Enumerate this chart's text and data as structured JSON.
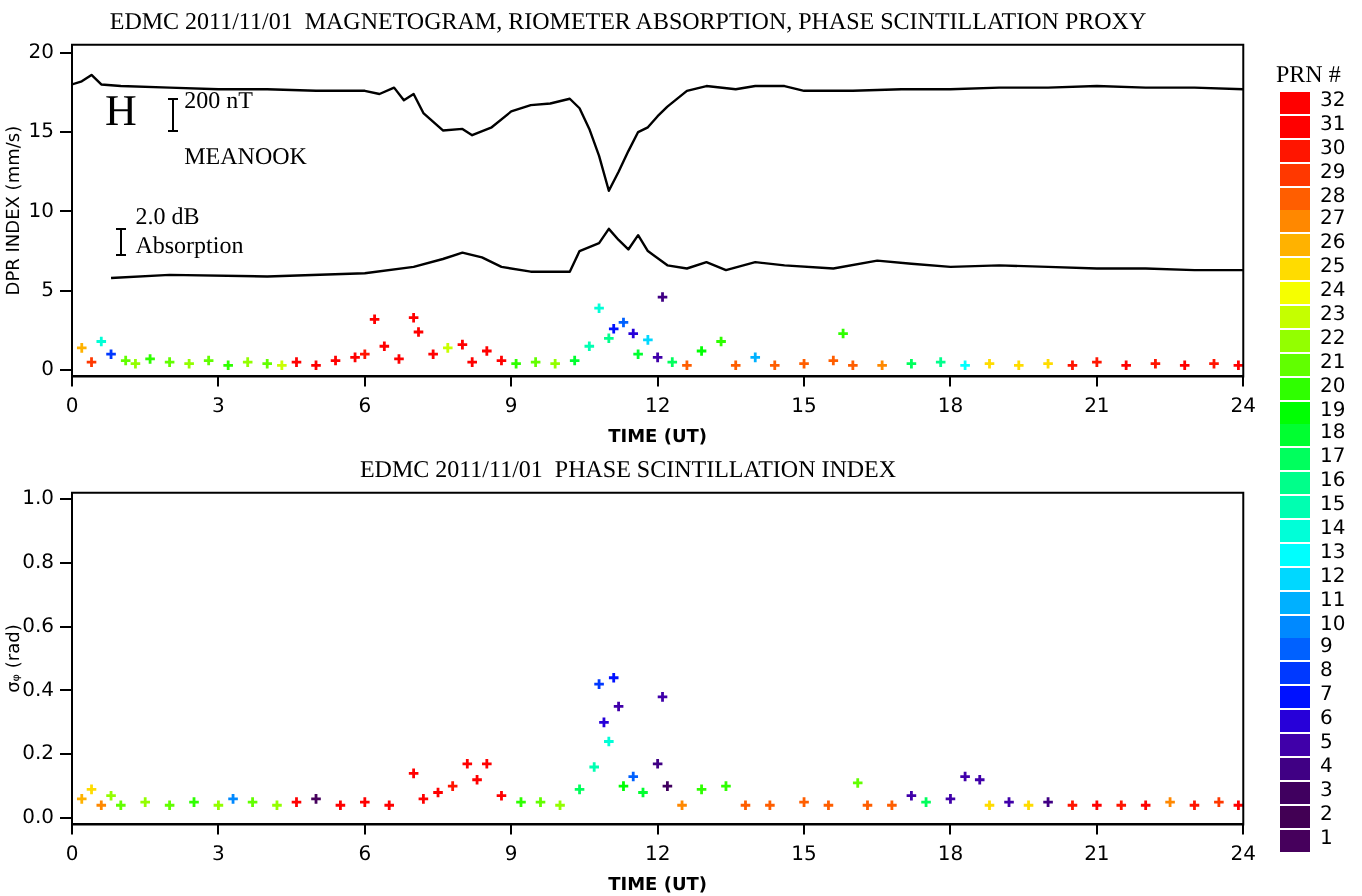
{
  "chart_data": [
    {
      "type": "scatter",
      "title": "EDMC 2011/11/01  MAGNETOGRAM, RIOMETER ABSORPTION, PHASE SCINTILLATION PROXY",
      "xlabel": "TIME (UT)",
      "ylabel": "DPR INDEX (mm/s)",
      "xlim": [
        0,
        24
      ],
      "xticks": [
        0,
        3,
        6,
        9,
        12,
        15,
        18,
        21,
        24
      ],
      "ylim": [
        -0.4,
        20.5
      ],
      "yticks": [
        0,
        5,
        10,
        15,
        20
      ],
      "grid": false,
      "legend": false,
      "clabel": "PRN #",
      "clim": [
        0.5,
        32.5
      ],
      "cticks": [
        1,
        2,
        3,
        4,
        5,
        6,
        7,
        8,
        9,
        10,
        11,
        12,
        13,
        14,
        15,
        16,
        17,
        18,
        19,
        20,
        21,
        22,
        23,
        24,
        25,
        26,
        27,
        28,
        29,
        30,
        31,
        32
      ],
      "annotations": [
        "H",
        "200 nT",
        "MEANOOK",
        "2.0 dB",
        "Absorption"
      ],
      "series": [
        {
          "type": "line",
          "color": "#000000",
          "marker": "none",
          "x": [
            0,
            0.2,
            0.4,
            0.6,
            1,
            2,
            3,
            4,
            5,
            6,
            6.3,
            6.6,
            6.8,
            7.0,
            7.2,
            7.6,
            8.0,
            8.2,
            8.6,
            9.0,
            9.4,
            9.8,
            10.2,
            10.4,
            10.6,
            10.8,
            11.0,
            11.2,
            11.4,
            11.6,
            11.8,
            12.0,
            12.2,
            12.6,
            13.0,
            13.6,
            14.0,
            14.6,
            15.0,
            16,
            17,
            18,
            19,
            20,
            21,
            22,
            23,
            24
          ],
          "values": [
            18.0,
            18.2,
            18.6,
            18.0,
            17.9,
            17.8,
            17.7,
            17.7,
            17.6,
            17.6,
            17.4,
            17.8,
            17.0,
            17.4,
            16.2,
            15.1,
            15.2,
            14.8,
            15.3,
            16.3,
            16.7,
            16.8,
            17.1,
            16.5,
            15.2,
            13.5,
            11.3,
            12.5,
            13.8,
            15.0,
            15.3,
            16.0,
            16.6,
            17.6,
            17.9,
            17.7,
            17.9,
            17.9,
            17.6,
            17.6,
            17.7,
            17.7,
            17.8,
            17.8,
            17.9,
            17.8,
            17.8,
            17.7
          ]
        },
        {
          "type": "line",
          "color": "#000000",
          "marker": "none",
          "x": [
            0.8,
            2,
            4,
            6,
            7,
            7.6,
            8.0,
            8.4,
            8.8,
            9.4,
            10.2,
            10.4,
            10.8,
            11.0,
            11.2,
            11.4,
            11.6,
            11.8,
            12.2,
            12.6,
            13.0,
            13.4,
            14.0,
            14.6,
            15.6,
            16.5,
            17.2,
            18,
            19,
            20,
            21,
            22,
            23,
            24
          ],
          "values": [
            5.8,
            6.0,
            5.9,
            6.1,
            6.5,
            7.0,
            7.4,
            7.1,
            6.5,
            6.2,
            6.2,
            7.5,
            8.0,
            8.9,
            8.2,
            7.6,
            8.5,
            7.5,
            6.6,
            6.4,
            6.8,
            6.3,
            6.8,
            6.6,
            6.4,
            6.9,
            6.7,
            6.5,
            6.6,
            6.5,
            6.4,
            6.4,
            6.3,
            6.3
          ]
        },
        {
          "type": "scatter",
          "marker": "cross",
          "x": [
            0.2,
            0.4,
            0.6,
            0.8,
            1.1,
            1.3,
            1.6,
            2.0,
            2.4,
            2.8,
            3.2,
            3.6,
            4.0,
            4.3,
            4.6,
            5.0,
            5.4,
            5.8,
            6.0,
            6.2,
            6.4,
            6.7,
            7.0,
            7.1,
            7.4,
            7.7,
            8.0,
            8.2,
            8.5,
            8.8,
            9.1,
            9.5,
            9.9,
            10.3,
            10.6,
            10.8,
            11.0,
            11.1,
            11.3,
            11.5,
            11.6,
            11.8,
            12.0,
            12.1,
            12.3,
            12.6,
            12.9,
            13.3,
            13.6,
            14.0,
            14.4,
            15.0,
            15.6,
            15.8,
            16.0,
            16.6,
            17.2,
            17.8,
            18.3,
            18.8,
            19.4,
            20.0,
            20.5,
            21.0,
            21.6,
            22.2,
            22.8,
            23.4,
            23.9
          ],
          "values": [
            1.4,
            0.5,
            1.8,
            1.0,
            0.6,
            0.4,
            0.7,
            0.5,
            0.4,
            0.6,
            0.3,
            0.5,
            0.4,
            0.3,
            0.5,
            0.3,
            0.6,
            0.8,
            1.0,
            3.2,
            1.5,
            0.7,
            3.3,
            2.4,
            1.0,
            1.4,
            1.6,
            0.5,
            1.2,
            0.6,
            0.4,
            0.5,
            0.4,
            0.6,
            1.5,
            3.9,
            2.0,
            2.6,
            3.0,
            2.3,
            1.0,
            1.9,
            0.8,
            4.6,
            0.5,
            0.3,
            1.2,
            1.8,
            0.3,
            0.8,
            0.3,
            0.4,
            0.6,
            2.3,
            0.3,
            0.3,
            0.4,
            0.5,
            0.3,
            0.4,
            0.3,
            0.4,
            0.3,
            0.5,
            0.3,
            0.4,
            0.3,
            0.4,
            0.3
          ],
          "colors": [
            "#ffb200",
            "#ff3800",
            "#00ffd7",
            "#0038ff",
            "#62ff00",
            "#93ff00",
            "#2eff00",
            "#62ff00",
            "#93ff00",
            "#62ff00",
            "#2eff00",
            "#93ff00",
            "#62ff00",
            "#c9ff00",
            "#ff0000",
            "#ff0000",
            "#ff0000",
            "#ff0000",
            "#ff1500",
            "#ff0000",
            "#ff0000",
            "#ff0000",
            "#ff0000",
            "#ff0000",
            "#ff0000",
            "#c9ff00",
            "#ff0000",
            "#ff0000",
            "#ff0000",
            "#ff0000",
            "#2eff00",
            "#62ff00",
            "#93ff00",
            "#00ff30",
            "#00ffb1",
            "#00ffd7",
            "#00ff8c",
            "#0011ff",
            "#0061ff",
            "#2600d9",
            "#00ff30",
            "#00d8ff",
            "#4000aa",
            "#400084",
            "#00ff5c",
            "#ff5e00",
            "#00ff03",
            "#2eff00",
            "#ff5e00",
            "#00b1ff",
            "#ff5e00",
            "#ff5e00",
            "#ff5e00",
            "#2eff00",
            "#ff5e00",
            "#ff8800",
            "#00ff5c",
            "#00ff8c",
            "#00fffe",
            "#ffdc00",
            "#ffdc00",
            "#ffdc00",
            "#ff1500",
            "#ff1500",
            "#ff0000",
            "#ff1500",
            "#ff0000",
            "#ff1500",
            "#ff0000"
          ]
        }
      ]
    },
    {
      "type": "scatter",
      "title": "EDMC 2011/11/01  PHASE SCINTILLATION INDEX",
      "xlabel": "TIME (UT)",
      "ylabel": "σᵩ (rad)",
      "xlim": [
        0,
        24
      ],
      "xticks": [
        0,
        3,
        6,
        9,
        12,
        15,
        18,
        21,
        24
      ],
      "ylim": [
        -0.02,
        1.02
      ],
      "yticks": [
        {
          "value": 0,
          "label": "0.0"
        },
        {
          "value": 0.2,
          "label": "0.2"
        },
        {
          "value": 0.4,
          "label": "0.4"
        },
        {
          "value": 0.6,
          "label": "0.6"
        },
        {
          "value": 0.8,
          "label": "0.8"
        },
        {
          "value": 1,
          "label": "1.0"
        }
      ],
      "grid": false,
      "legend": false,
      "series": [
        {
          "type": "scatter",
          "marker": "cross",
          "x": [
            0.2,
            0.4,
            0.6,
            0.8,
            1.0,
            1.5,
            2.0,
            2.5,
            3.0,
            3.3,
            3.7,
            4.2,
            4.6,
            5.0,
            5.5,
            6.0,
            6.5,
            7.0,
            7.2,
            7.5,
            7.8,
            8.1,
            8.3,
            8.5,
            8.8,
            9.2,
            9.6,
            10.0,
            10.4,
            10.7,
            10.8,
            10.9,
            11.0,
            11.1,
            11.2,
            11.3,
            11.5,
            11.7,
            12.0,
            12.1,
            12.2,
            12.5,
            12.9,
            13.4,
            13.8,
            14.3,
            15.0,
            15.5,
            16.1,
            16.3,
            16.8,
            17.2,
            17.5,
            18.0,
            18.3,
            18.6,
            18.8,
            19.2,
            19.6,
            20.0,
            20.5,
            21.0,
            21.5,
            22.0,
            22.5,
            23.0,
            23.5,
            23.9
          ],
          "values": [
            0.06,
            0.09,
            0.04,
            0.07,
            0.04,
            0.05,
            0.04,
            0.05,
            0.04,
            0.06,
            0.05,
            0.04,
            0.05,
            0.06,
            0.04,
            0.05,
            0.04,
            0.14,
            0.06,
            0.08,
            0.1,
            0.17,
            0.12,
            0.17,
            0.07,
            0.05,
            0.05,
            0.04,
            0.09,
            0.16,
            0.42,
            0.3,
            0.24,
            0.44,
            0.35,
            0.1,
            0.13,
            0.08,
            0.17,
            0.38,
            0.1,
            0.04,
            0.09,
            0.1,
            0.04,
            0.04,
            0.05,
            0.04,
            0.11,
            0.04,
            0.04,
            0.07,
            0.05,
            0.06,
            0.13,
            0.12,
            0.04,
            0.05,
            0.04,
            0.05,
            0.04,
            0.04,
            0.04,
            0.04,
            0.05,
            0.04,
            0.05,
            0.04
          ],
          "colors": [
            "#ffb200",
            "#ffdc00",
            "#ff8800",
            "#93ff00",
            "#62ff00",
            "#93ff00",
            "#62ff00",
            "#2eff00",
            "#93ff00",
            "#0089ff",
            "#62ff00",
            "#93ff00",
            "#ff0000",
            "#46005c",
            "#ff0000",
            "#ff0000",
            "#ff0000",
            "#ff0000",
            "#ff0000",
            "#ff0000",
            "#ff1500",
            "#ff0000",
            "#ff0000",
            "#ff0000",
            "#ff0000",
            "#2eff00",
            "#62ff00",
            "#93ff00",
            "#00ff5c",
            "#00ffb1",
            "#0038ff",
            "#2600d9",
            "#00ffd7",
            "#0011ff",
            "#4000aa",
            "#00ff03",
            "#0061ff",
            "#00ff30",
            "#400084",
            "#4000aa",
            "#40005f",
            "#ff8800",
            "#2eff00",
            "#2eff00",
            "#ff5e00",
            "#ff5e00",
            "#ff5e00",
            "#ff5e00",
            "#62ff00",
            "#ff5e00",
            "#ff5e00",
            "#4000aa",
            "#00ff5c",
            "#4000aa",
            "#4000aa",
            "#4000aa",
            "#ffdc00",
            "#4000aa",
            "#ffdc00",
            "#400084",
            "#ff1500",
            "#ff0000",
            "#ff1500",
            "#ff0000",
            "#ff8800",
            "#ff1500",
            "#ff3800",
            "#ff0000"
          ]
        }
      ]
    }
  ]
}
